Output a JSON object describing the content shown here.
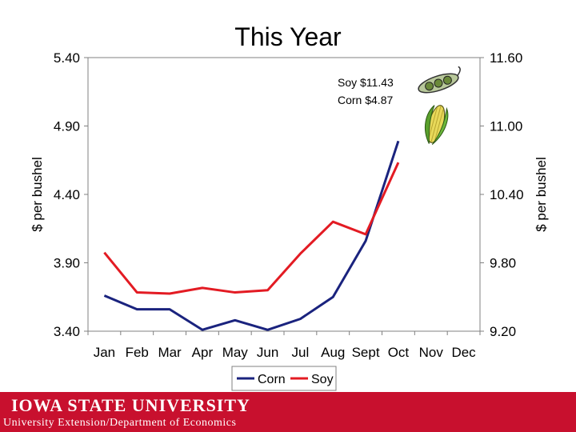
{
  "chart_data": {
    "type": "line",
    "title": "This Year",
    "categories": [
      "Jan",
      "Feb",
      "Mar",
      "Apr",
      "May",
      "Jun",
      "Jul",
      "Aug",
      "Sept",
      "Oct",
      "Nov",
      "Dec"
    ],
    "y_left": {
      "label": "$ per bushel",
      "range": [
        3.4,
        5.4
      ],
      "ticks": [
        "5.40",
        "4.90",
        "4.40",
        "3.90",
        "3.40"
      ]
    },
    "y_right": {
      "label": "$ per bushel",
      "range": [
        9.2,
        11.6
      ],
      "ticks": [
        "11.60",
        "11.00",
        "10.40",
        "9.80",
        "9.20"
      ]
    },
    "series": [
      {
        "name": "Corn",
        "axis": "left",
        "color": "#1a237e",
        "values": [
          3.66,
          3.56,
          3.56,
          3.41,
          3.48,
          3.41,
          3.49,
          3.65,
          4.06,
          4.79,
          null,
          null
        ]
      },
      {
        "name": "Soy",
        "axis": "right",
        "color": "#e31b23",
        "values": [
          9.89,
          9.54,
          9.53,
          9.58,
          9.54,
          9.56,
          9.88,
          10.16,
          10.05,
          10.68,
          null,
          null
        ]
      }
    ],
    "annotations": [
      "Soy $11.43",
      "Corn $4.87"
    ],
    "grid": false,
    "legend": "bottom"
  },
  "footer": {
    "logo": "IOWA STATE UNIVERSITY",
    "subtitle": "University Extension/Department of Economics"
  },
  "icons": [
    "soybean-pod-icon",
    "corn-cob-icon"
  ]
}
